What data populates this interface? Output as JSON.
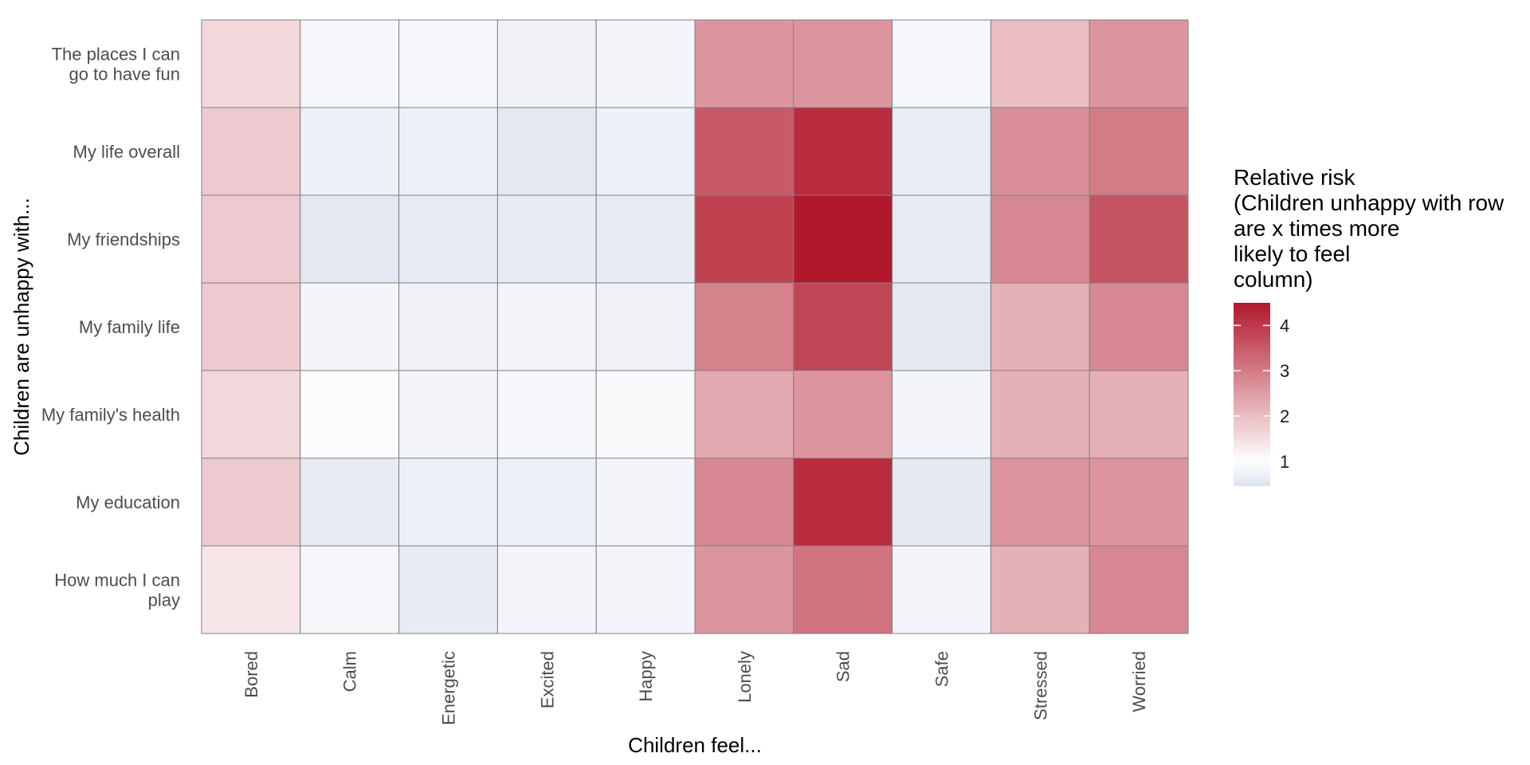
{
  "chart_data": {
    "type": "heatmap",
    "xlabel": "Children feel...",
    "ylabel": "Children are unhappy with...",
    "columns": [
      "Bored",
      "Calm",
      "Energetic",
      "Excited",
      "Happy",
      "Lonely",
      "Sad",
      "Safe",
      "Stressed",
      "Worried"
    ],
    "rows": [
      [
        "The places I can",
        "go to have fun"
      ],
      [
        "My life overall"
      ],
      [
        "My friendships"
      ],
      [
        "My family life"
      ],
      [
        "My family's health"
      ],
      [
        "My education"
      ],
      [
        "How much I can",
        "play"
      ]
    ],
    "values": [
      [
        1.6,
        0.85,
        0.85,
        0.75,
        0.8,
        2.6,
        2.6,
        0.85,
        2.0,
        2.6
      ],
      [
        1.8,
        0.7,
        0.7,
        0.55,
        0.7,
        3.5,
        4.2,
        0.65,
        2.7,
        3.0
      ],
      [
        1.8,
        0.55,
        0.6,
        0.6,
        0.6,
        3.9,
        4.5,
        0.6,
        2.8,
        3.6
      ],
      [
        1.8,
        0.8,
        0.75,
        0.8,
        0.75,
        2.9,
        3.8,
        0.55,
        2.2,
        2.8
      ],
      [
        1.6,
        0.95,
        0.8,
        0.85,
        0.9,
        2.3,
        2.6,
        0.8,
        2.2,
        2.2
      ],
      [
        1.8,
        0.6,
        0.7,
        0.7,
        0.8,
        2.8,
        4.2,
        0.55,
        2.6,
        2.6
      ],
      [
        1.4,
        0.85,
        0.6,
        0.8,
        0.8,
        2.6,
        3.1,
        0.8,
        2.2,
        2.8
      ]
    ],
    "legend": {
      "title": [
        "Relative risk",
        "(Children unhappy with row",
        "are x times more",
        "likely to feel",
        "column)"
      ],
      "ticks": [
        1,
        2,
        3,
        4
      ],
      "min": 0.45,
      "max": 4.5,
      "position": "right"
    },
    "colors": {
      "low": "#dde3f0",
      "mid": "#ffffff",
      "high": "#b2182b",
      "cell_border": "#808080"
    }
  }
}
